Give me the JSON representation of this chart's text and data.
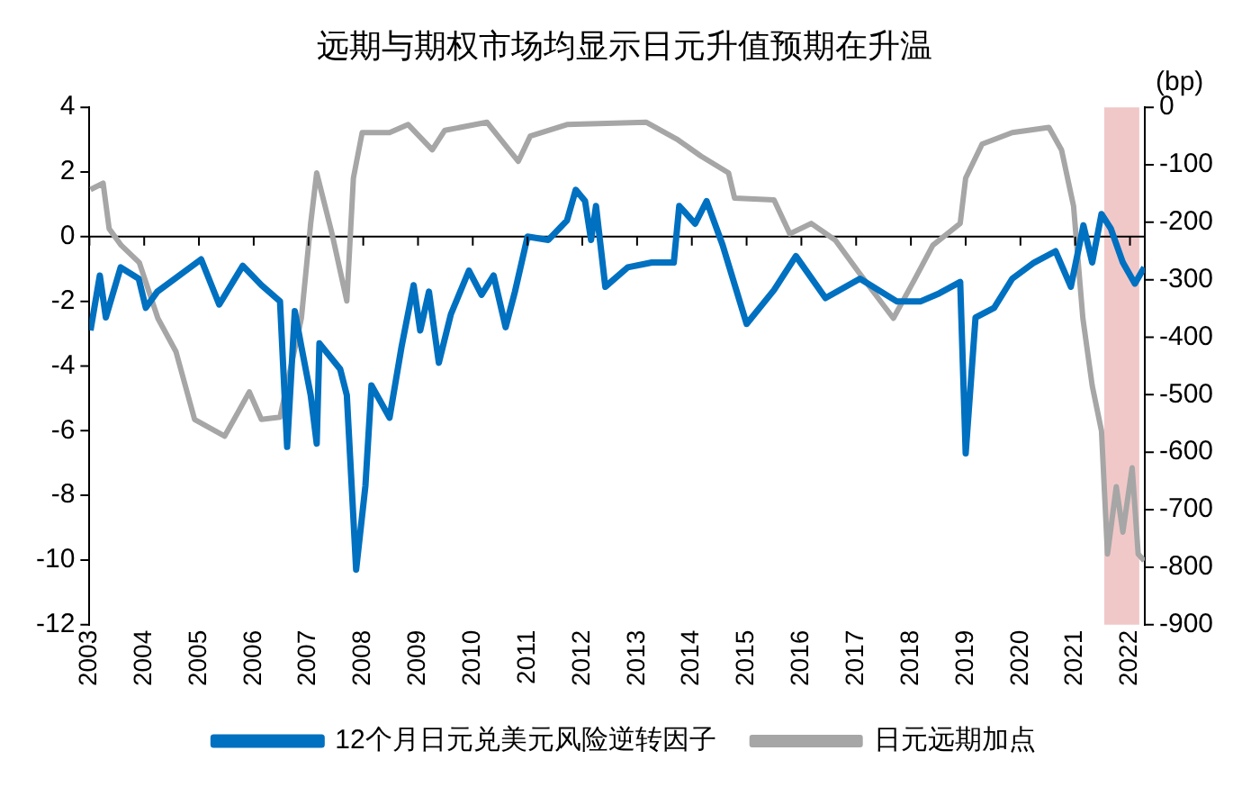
{
  "chart_data": {
    "type": "line",
    "title": "远期与期权市场均显示日元升值预期在升温",
    "y2label": "(bp)",
    "xlim": [
      2003,
      2022.27
    ],
    "xticks": [
      2003,
      2004,
      2005,
      2006,
      2007,
      2008,
      2009,
      2010,
      2011,
      2012,
      2013,
      2014,
      2015,
      2016,
      2017,
      2018,
      2019,
      2020,
      2021,
      2022
    ],
    "ylim": [
      -12,
      4
    ],
    "yticks": [
      -12,
      -10,
      -8,
      -6,
      -4,
      -2,
      0,
      2,
      4
    ],
    "y2lim": [
      -900,
      0
    ],
    "y2ticks": [
      -900,
      -800,
      -700,
      -600,
      -500,
      -400,
      -300,
      -200,
      -100,
      0
    ],
    "grid": false,
    "legend": "bottom",
    "marker": "none",
    "line_style": "solid",
    "ref_lines": [
      {
        "axis": "y",
        "value": 0,
        "color": "#000000"
      }
    ],
    "bands": [
      {
        "axis": "x",
        "from": 2021.53,
        "to": 2022.17,
        "color": "#e8a3a3"
      }
    ],
    "series": [
      {
        "name": "12个月日元兑美元风险逆转因子",
        "color": "#0070c0",
        "axis": "y",
        "x": [
          2003.02,
          2003.19,
          2003.3,
          2003.57,
          2003.9,
          2004.03,
          2004.24,
          2005.04,
          2005.37,
          2005.8,
          2006.14,
          2006.48,
          2006.61,
          2006.75,
          2006.87,
          2007.04,
          2007.15,
          2007.2,
          2007.58,
          2007.7,
          2007.87,
          2008.04,
          2008.15,
          2008.48,
          2008.7,
          2008.92,
          2009.04,
          2009.2,
          2009.38,
          2009.6,
          2009.93,
          2010.16,
          2010.38,
          2010.6,
          2010.77,
          2011.0,
          2011.38,
          2011.72,
          2011.88,
          2012.05,
          2012.16,
          2012.25,
          2012.42,
          2012.83,
          2013.27,
          2013.67,
          2013.77,
          2014.06,
          2014.27,
          2014.56,
          2015.0,
          2015.5,
          2015.9,
          2016.44,
          2017.07,
          2017.74,
          2018.18,
          2018.52,
          2018.9,
          2019.0,
          2019.18,
          2019.52,
          2019.85,
          2020.25,
          2020.64,
          2020.92,
          2021.15,
          2021.31,
          2021.48,
          2021.65,
          2021.87,
          2022.09,
          2022.26
        ],
        "values": [
          -2.9,
          -1.2,
          -2.5,
          -0.95,
          -1.3,
          -2.2,
          -1.7,
          -0.7,
          -2.1,
          -0.9,
          -1.5,
          -2.0,
          -6.5,
          -2.3,
          -3.4,
          -4.9,
          -6.4,
          -3.3,
          -4.1,
          -4.9,
          -10.3,
          -7.7,
          -4.6,
          -5.6,
          -3.4,
          -1.5,
          -2.9,
          -1.7,
          -3.9,
          -2.4,
          -1.05,
          -1.8,
          -1.2,
          -2.8,
          -1.7,
          0,
          -0.1,
          0.5,
          1.45,
          1.1,
          -0.1,
          0.95,
          -1.55,
          -0.95,
          -0.8,
          -0.8,
          0.95,
          0.4,
          1.1,
          -0.25,
          -2.7,
          -1.65,
          -0.6,
          -1.9,
          -1.3,
          -2.0,
          -2.0,
          -1.75,
          -1.4,
          -6.7,
          -2.5,
          -2.2,
          -1.3,
          -0.8,
          -0.45,
          -1.55,
          0.35,
          -0.8,
          0.7,
          0.25,
          -0.8,
          -1.45,
          -0.95
        ]
      },
      {
        "name": "日元远期加点",
        "color": "#a6a6a6",
        "axis": "y2",
        "x": [
          2003.02,
          2003.25,
          2003.36,
          2003.58,
          2003.91,
          2004.25,
          2004.58,
          2004.92,
          2005.47,
          2005.92,
          2006.14,
          2006.48,
          2006.87,
          2007.04,
          2007.15,
          2007.43,
          2007.7,
          2007.82,
          2007.98,
          2008.48,
          2008.82,
          2009.26,
          2009.49,
          2010.26,
          2010.83,
          2011.05,
          2011.72,
          2013.17,
          2013.72,
          2014.17,
          2014.67,
          2014.78,
          2015.5,
          2015.79,
          2016.18,
          2016.62,
          2017.07,
          2017.68,
          2018.07,
          2018.4,
          2018.9,
          2019.0,
          2019.3,
          2019.85,
          2020.52,
          2020.75,
          2020.97,
          2021.14,
          2021.31,
          2021.48,
          2021.59,
          2021.75,
          2021.87,
          2022.04,
          2022.15,
          2022.26
        ],
        "values": [
          -143,
          -132,
          -211,
          -240,
          -270,
          -367,
          -425,
          -543,
          -572,
          -495,
          -543,
          -539,
          -367,
          -202,
          -114,
          -220,
          -337,
          -123,
          -44,
          -44,
          -30,
          -74,
          -40,
          -26,
          -94,
          -50,
          -30,
          -26,
          -55,
          -85,
          -114,
          -158,
          -161,
          -220,
          -202,
          -231,
          -290,
          -367,
          -299,
          -240,
          -202,
          -123,
          -64,
          -44,
          -35,
          -74,
          -172,
          -367,
          -484,
          -563,
          -777,
          -660,
          -739,
          -627,
          -777,
          -789
        ]
      }
    ]
  }
}
